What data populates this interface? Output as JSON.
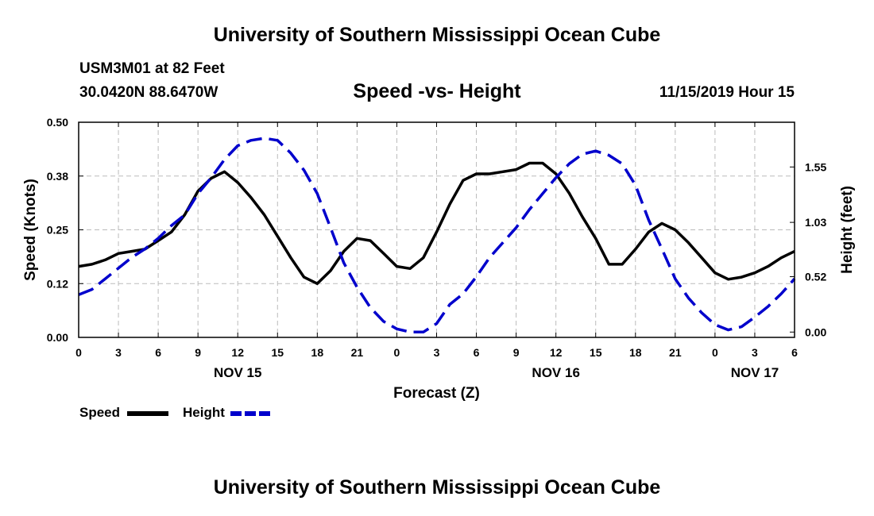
{
  "header": {
    "title": "University of Southern Mississippi Ocean Cube",
    "station": "USM3M01 at 82 Feet",
    "coordinates": "30.0420N 88.6470W",
    "chart_title": "Speed -vs- Height",
    "datetime": "11/15/2019 Hour 15"
  },
  "footer": {
    "title": "University of Southern Mississippi Ocean Cube"
  },
  "colors": {
    "speed": "#000000",
    "height": "#0000cc",
    "grid": "#bbbbbb"
  },
  "chart_data": {
    "type": "line",
    "title": "Speed -vs- Height",
    "xlabel": "Forecast (Z)",
    "ylabel": "Speed (Knots)",
    "y2label": "Height (feet)",
    "x_unit": "hours from NOV 15 00Z",
    "xlim": [
      0,
      54
    ],
    "ylim": [
      0,
      0.5
    ],
    "y2lim": [
      -0.05,
      1.97
    ],
    "x_ticks": [
      0,
      3,
      6,
      9,
      12,
      15,
      18,
      21,
      24,
      27,
      30,
      33,
      36,
      39,
      42,
      45,
      48,
      51,
      54
    ],
    "x_tick_labels": [
      "0",
      "3",
      "6",
      "9",
      "12",
      "15",
      "18",
      "21",
      "0",
      "3",
      "6",
      "9",
      "12",
      "15",
      "18",
      "21",
      "0",
      "3",
      "6"
    ],
    "y_ticks": [
      0,
      0.125,
      0.25,
      0.375,
      0.5
    ],
    "y_tick_labels": [
      "0.00",
      "0.12",
      "0.25",
      "0.38",
      "0.50"
    ],
    "y2_ticks": [
      0,
      0.52,
      1.03,
      1.55
    ],
    "y2_tick_labels": [
      "0.00",
      "0.52",
      "1.03",
      "1.55"
    ],
    "day_labels": [
      {
        "x": 12,
        "label": "NOV 15"
      },
      {
        "x": 36,
        "label": "NOV 16"
      },
      {
        "x": 51,
        "label": "NOV 17"
      }
    ],
    "grid": true,
    "legend": [
      {
        "name": "Speed",
        "style": "solid"
      },
      {
        "name": "Height",
        "style": "dashed"
      }
    ],
    "series": [
      {
        "name": "Speed",
        "axis": "left",
        "style": "solid",
        "x": [
          0,
          1,
          2,
          3,
          4,
          5,
          6,
          7,
          8,
          9,
          10,
          11,
          12,
          13,
          14,
          15,
          16,
          17,
          18,
          19,
          20,
          21,
          22,
          23,
          24,
          25,
          26,
          27,
          28,
          29,
          30,
          31,
          32,
          33,
          34,
          35,
          36,
          37,
          38,
          39,
          40,
          41,
          42,
          43,
          44,
          45,
          46,
          47,
          48,
          49,
          50,
          51,
          52,
          53,
          54
        ],
        "values": [
          0.165,
          0.17,
          0.18,
          0.195,
          0.2,
          0.205,
          0.225,
          0.245,
          0.285,
          0.34,
          0.37,
          0.385,
          0.36,
          0.325,
          0.285,
          0.235,
          0.185,
          0.14,
          0.125,
          0.155,
          0.2,
          0.23,
          0.225,
          0.195,
          0.165,
          0.16,
          0.185,
          0.245,
          0.31,
          0.365,
          0.38,
          0.38,
          0.385,
          0.39,
          0.405,
          0.405,
          0.38,
          0.335,
          0.28,
          0.23,
          0.17,
          0.17,
          0.205,
          0.245,
          0.265,
          0.25,
          0.22,
          0.185,
          0.15,
          0.135,
          0.14,
          0.15,
          0.165,
          0.185,
          0.2
        ]
      },
      {
        "name": "Height",
        "axis": "right",
        "style": "dashed",
        "x": [
          0,
          1,
          2,
          3,
          4,
          5,
          6,
          7,
          8,
          9,
          10,
          11,
          12,
          13,
          14,
          15,
          16,
          17,
          18,
          19,
          20,
          21,
          22,
          23,
          24,
          25,
          26,
          27,
          28,
          29,
          30,
          31,
          32,
          33,
          34,
          35,
          36,
          37,
          38,
          39,
          40,
          41,
          42,
          43,
          44,
          45,
          46,
          47,
          48,
          49,
          50,
          51,
          52,
          53,
          54
        ],
        "values": [
          0.35,
          0.4,
          0.5,
          0.6,
          0.7,
          0.78,
          0.88,
          1.0,
          1.1,
          1.3,
          1.45,
          1.62,
          1.75,
          1.8,
          1.82,
          1.8,
          1.68,
          1.52,
          1.3,
          0.98,
          0.65,
          0.42,
          0.23,
          0.1,
          0.03,
          0.0,
          0.0,
          0.08,
          0.26,
          0.36,
          0.52,
          0.7,
          0.84,
          0.98,
          1.15,
          1.3,
          1.45,
          1.58,
          1.67,
          1.7,
          1.66,
          1.58,
          1.38,
          1.05,
          0.78,
          0.5,
          0.32,
          0.18,
          0.07,
          0.02,
          0.05,
          0.14,
          0.24,
          0.36,
          0.5
        ]
      }
    ]
  }
}
